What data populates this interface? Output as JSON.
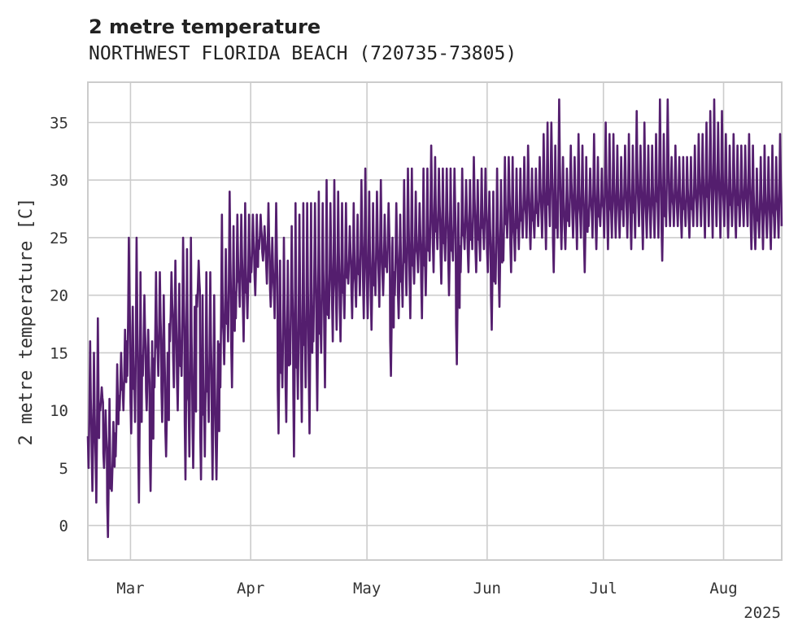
{
  "chart_data": {
    "type": "line",
    "title": "2 metre temperature",
    "subtitle": "NORTHWEST FLORIDA BEACH (720735-73805)",
    "ylabel": "2 metre temperature [C]",
    "xlabel": "",
    "year_label": "2025",
    "xlim": [
      "2025-02-18",
      "2025-08-16"
    ],
    "ylim": [
      -3,
      38.5
    ],
    "grid": true,
    "x_ticks": [
      {
        "date": "2025-03-01",
        "label": "Mar"
      },
      {
        "date": "2025-04-01",
        "label": "Apr"
      },
      {
        "date": "2025-05-01",
        "label": "May"
      },
      {
        "date": "2025-06-01",
        "label": "Jun"
      },
      {
        "date": "2025-07-01",
        "label": "Jul"
      },
      {
        "date": "2025-08-01",
        "label": "Aug"
      }
    ],
    "y_ticks": [
      0,
      5,
      10,
      15,
      20,
      25,
      30,
      35
    ],
    "series": [
      {
        "name": "",
        "color": "#541e6e",
        "x": [
          "2025-02-18",
          "2025-02-19",
          "2025-02-20",
          "2025-02-21",
          "2025-02-22",
          "2025-02-23",
          "2025-02-24",
          "2025-02-25",
          "2025-02-26",
          "2025-02-27",
          "2025-02-28",
          "2025-03-01",
          "2025-03-02",
          "2025-03-03",
          "2025-03-04",
          "2025-03-05",
          "2025-03-06",
          "2025-03-07",
          "2025-03-08",
          "2025-03-09",
          "2025-03-10",
          "2025-03-11",
          "2025-03-12",
          "2025-03-13",
          "2025-03-14",
          "2025-03-15",
          "2025-03-16",
          "2025-03-17",
          "2025-03-18",
          "2025-03-19",
          "2025-03-20",
          "2025-03-21",
          "2025-03-22",
          "2025-03-23",
          "2025-03-24",
          "2025-03-25",
          "2025-03-26",
          "2025-03-27",
          "2025-03-28",
          "2025-03-29",
          "2025-03-30",
          "2025-03-31",
          "2025-04-01",
          "2025-04-02",
          "2025-04-03",
          "2025-04-04",
          "2025-04-05",
          "2025-04-06",
          "2025-04-07",
          "2025-04-08",
          "2025-04-09",
          "2025-04-10",
          "2025-04-11",
          "2025-04-12",
          "2025-04-13",
          "2025-04-14",
          "2025-04-15",
          "2025-04-16",
          "2025-04-17",
          "2025-04-18",
          "2025-04-19",
          "2025-04-20",
          "2025-04-21",
          "2025-04-22",
          "2025-04-23",
          "2025-04-24",
          "2025-04-25",
          "2025-04-26",
          "2025-04-27",
          "2025-04-28",
          "2025-04-29",
          "2025-04-30",
          "2025-05-01",
          "2025-05-02",
          "2025-05-03",
          "2025-05-04",
          "2025-05-05",
          "2025-05-06",
          "2025-05-07",
          "2025-05-08",
          "2025-05-09",
          "2025-05-10",
          "2025-05-11",
          "2025-05-12",
          "2025-05-13",
          "2025-05-14",
          "2025-05-15",
          "2025-05-16",
          "2025-05-17",
          "2025-05-18",
          "2025-05-19",
          "2025-05-20",
          "2025-05-21",
          "2025-05-22",
          "2025-05-23",
          "2025-05-24",
          "2025-05-25",
          "2025-05-26",
          "2025-05-27",
          "2025-05-28",
          "2025-05-29",
          "2025-05-30",
          "2025-05-31",
          "2025-06-01",
          "2025-06-02",
          "2025-06-03",
          "2025-06-04",
          "2025-06-05",
          "2025-06-06",
          "2025-06-07",
          "2025-06-08",
          "2025-06-09",
          "2025-06-10",
          "2025-06-11",
          "2025-06-12",
          "2025-06-13",
          "2025-06-14",
          "2025-06-15",
          "2025-06-16",
          "2025-06-17",
          "2025-06-18",
          "2025-06-19",
          "2025-06-20",
          "2025-06-21",
          "2025-06-22",
          "2025-06-23",
          "2025-06-24",
          "2025-06-25",
          "2025-06-26",
          "2025-06-27",
          "2025-06-28",
          "2025-06-29",
          "2025-06-30",
          "2025-07-01",
          "2025-07-02",
          "2025-07-03",
          "2025-07-04",
          "2025-07-05",
          "2025-07-06",
          "2025-07-07",
          "2025-07-08",
          "2025-07-09",
          "2025-07-10",
          "2025-07-11",
          "2025-07-12",
          "2025-07-13",
          "2025-07-14",
          "2025-07-15",
          "2025-07-16",
          "2025-07-17",
          "2025-07-18",
          "2025-07-19",
          "2025-07-20",
          "2025-07-21",
          "2025-07-22",
          "2025-07-23",
          "2025-07-24",
          "2025-07-25",
          "2025-07-26",
          "2025-07-27",
          "2025-07-28",
          "2025-07-29",
          "2025-07-30",
          "2025-07-31",
          "2025-08-01",
          "2025-08-02",
          "2025-08-03",
          "2025-08-04",
          "2025-08-05",
          "2025-08-06",
          "2025-08-07",
          "2025-08-08",
          "2025-08-09",
          "2025-08-10",
          "2025-08-11",
          "2025-08-12",
          "2025-08-13",
          "2025-08-14",
          "2025-08-15"
        ],
        "min": [
          5,
          3,
          2,
          10,
          5,
          -1,
          3,
          6,
          10,
          10,
          13,
          8,
          9,
          2,
          13,
          10,
          3,
          12,
          13,
          9,
          6,
          16,
          12,
          10,
          13,
          4,
          6,
          5,
          19,
          4,
          6,
          9,
          4,
          4,
          12,
          14,
          16,
          12,
          18,
          19,
          16,
          18,
          22,
          20,
          24,
          23,
          21,
          19,
          18,
          8,
          12,
          9,
          14,
          6,
          11,
          9,
          12,
          8,
          16,
          10,
          15,
          12,
          18,
          16,
          17,
          16,
          18,
          21,
          18,
          19,
          20,
          18,
          18,
          17,
          20,
          19,
          20,
          22,
          13,
          20,
          18,
          19,
          20,
          18,
          21,
          22,
          18,
          20,
          23,
          22,
          24,
          21,
          23,
          20,
          23,
          14,
          22,
          24,
          22,
          24,
          22,
          23,
          24,
          22,
          17,
          21,
          19,
          23,
          25,
          22,
          23,
          24,
          25,
          25,
          24,
          25,
          26,
          25,
          24,
          26,
          22,
          25,
          24,
          24,
          26,
          25,
          24,
          25,
          22,
          26,
          25,
          24,
          26,
          25,
          24,
          25,
          25,
          25,
          26,
          25,
          24,
          25,
          26,
          24,
          25,
          25,
          25,
          25,
          23,
          26,
          26,
          26,
          26,
          25,
          26,
          25,
          26,
          26,
          26,
          25,
          26,
          25,
          26,
          25,
          26,
          25,
          26,
          25,
          26,
          26,
          26,
          24,
          24,
          25,
          24,
          25,
          24,
          25,
          25,
          26
        ],
        "max": [
          16,
          15,
          18,
          12,
          10,
          11,
          9,
          14,
          15,
          17,
          25,
          19,
          25,
          22,
          20,
          17,
          16,
          22,
          22,
          20,
          15,
          22,
          23,
          21,
          25,
          24,
          25,
          19,
          23,
          20,
          22,
          22,
          20,
          16,
          27,
          24,
          29,
          26,
          27,
          27,
          28,
          27,
          27,
          27,
          27,
          26,
          28,
          25,
          28,
          23,
          25,
          23,
          26,
          28,
          27,
          28,
          28,
          28,
          28,
          29,
          28,
          30,
          28,
          30,
          29,
          28,
          28,
          26,
          28,
          27,
          30,
          31,
          29,
          28,
          29,
          30,
          27,
          28,
          25,
          28,
          27,
          30,
          31,
          31,
          29,
          28,
          31,
          31,
          33,
          32,
          31,
          31,
          31,
          31,
          31,
          28,
          31,
          30,
          30,
          32,
          30,
          31,
          31,
          29,
          29,
          31,
          30,
          32,
          32,
          32,
          31,
          31,
          32,
          33,
          31,
          31,
          32,
          34,
          35,
          35,
          33,
          37,
          32,
          31,
          33,
          32,
          34,
          33,
          32,
          31,
          34,
          32,
          31,
          35,
          34,
          34,
          33,
          32,
          33,
          34,
          33,
          36,
          33,
          35,
          33,
          33,
          34,
          37,
          34,
          37,
          32,
          33,
          32,
          32,
          32,
          32,
          33,
          34,
          34,
          35,
          36,
          37,
          35,
          36,
          34,
          33,
          34,
          33,
          33,
          33,
          34,
          33,
          31,
          32,
          33,
          32,
          33,
          32,
          34,
          32
        ],
        "last": 26
      }
    ]
  }
}
